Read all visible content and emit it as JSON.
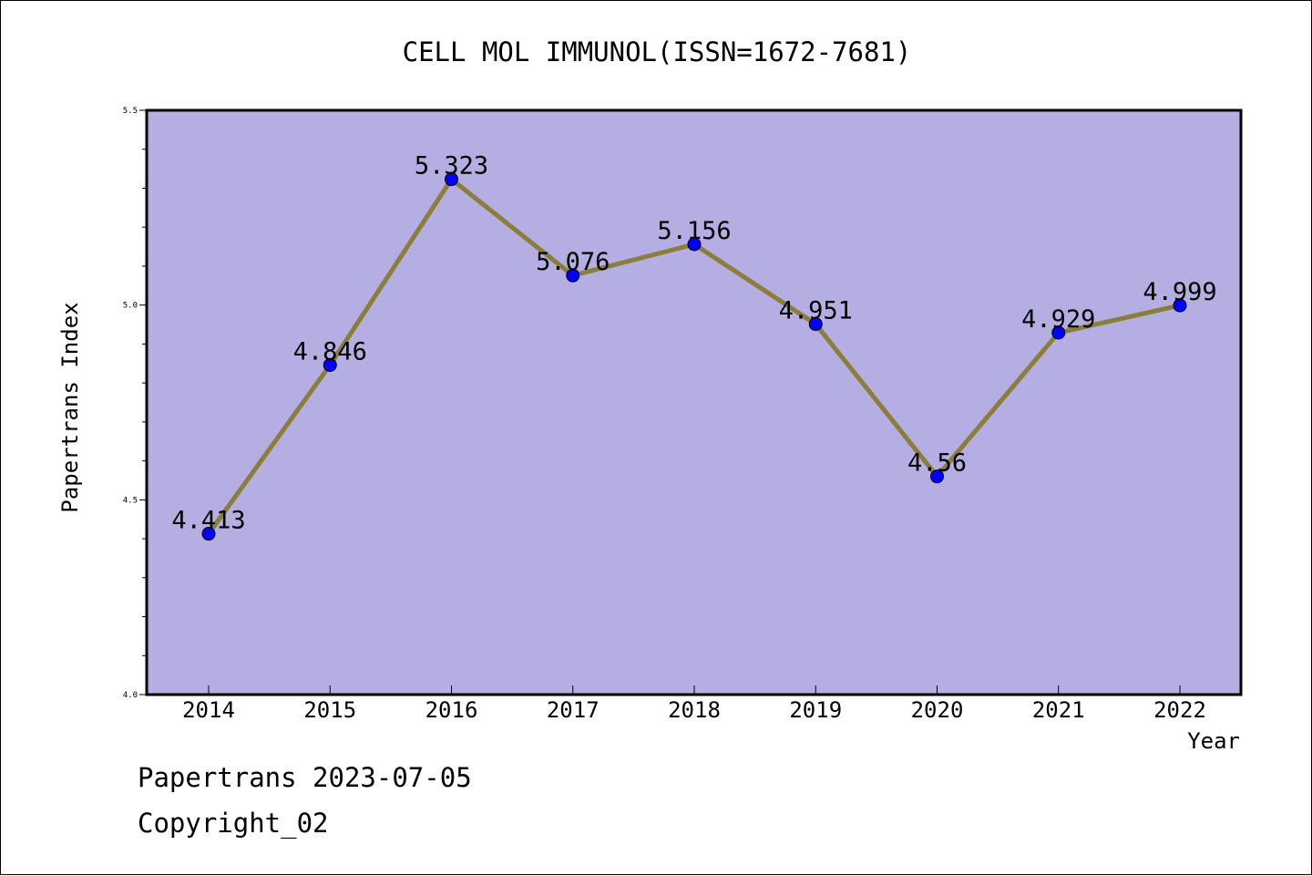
{
  "chart_data": {
    "type": "line",
    "title": "CELL MOL IMMUNOL(ISSN=1672-7681)",
    "xlabel": "Year",
    "ylabel": "Papertrans Index",
    "categories": [
      "2014",
      "2015",
      "2016",
      "2017",
      "2018",
      "2019",
      "2020",
      "2021",
      "2022"
    ],
    "values": [
      4.413,
      4.846,
      5.323,
      5.076,
      5.156,
      4.951,
      4.56,
      4.929,
      4.999
    ],
    "data_labels": [
      "4.413",
      "4.846",
      "5.323",
      "5.076",
      "5.156",
      "4.951",
      "4.56",
      "4.929",
      "4.999"
    ],
    "ylim": [
      4.0,
      5.5
    ],
    "y_ticks": [
      "4.0",
      "4.5",
      "5.0",
      "5.5"
    ],
    "grid": false,
    "colors": {
      "plot_background": "#b4aee2",
      "line": "#8b7d3a",
      "marker": "#0000ff"
    }
  },
  "footer": {
    "line1": "Papertrans 2023-07-05",
    "line2": "Copyright_02"
  }
}
